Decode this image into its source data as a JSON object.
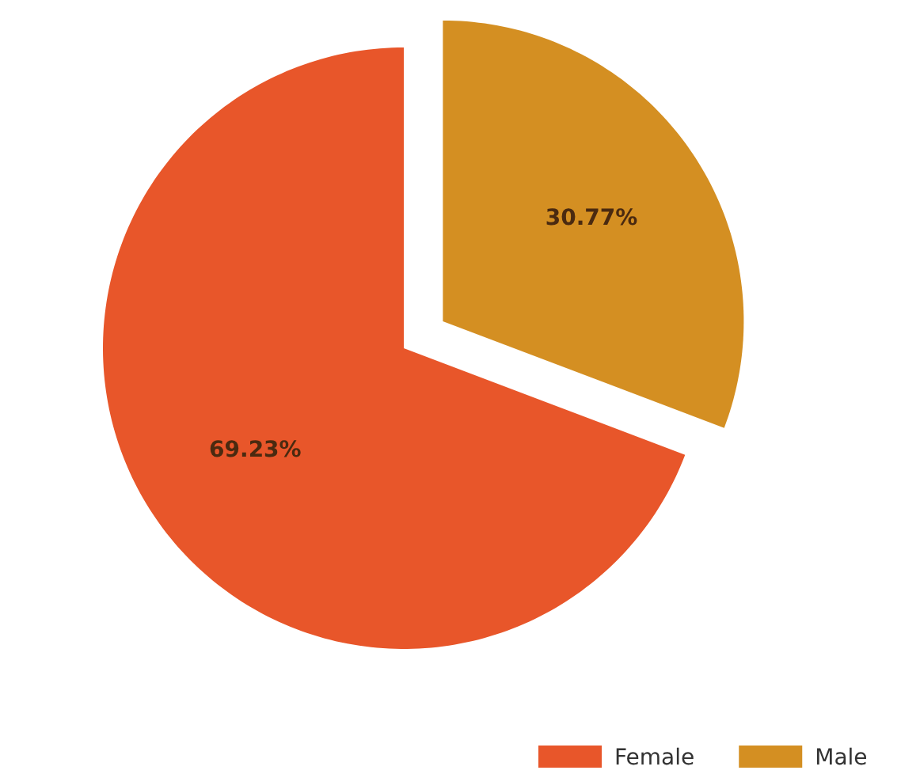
{
  "chart_data": {
    "type": "pie",
    "categories": [
      "Female",
      "Male"
    ],
    "values": [
      69.23,
      30.77
    ],
    "colors": [
      "#e8562a",
      "#d48f22"
    ],
    "value_labels": [
      "69.23%",
      "30.77%"
    ],
    "legend": "bottom right"
  }
}
